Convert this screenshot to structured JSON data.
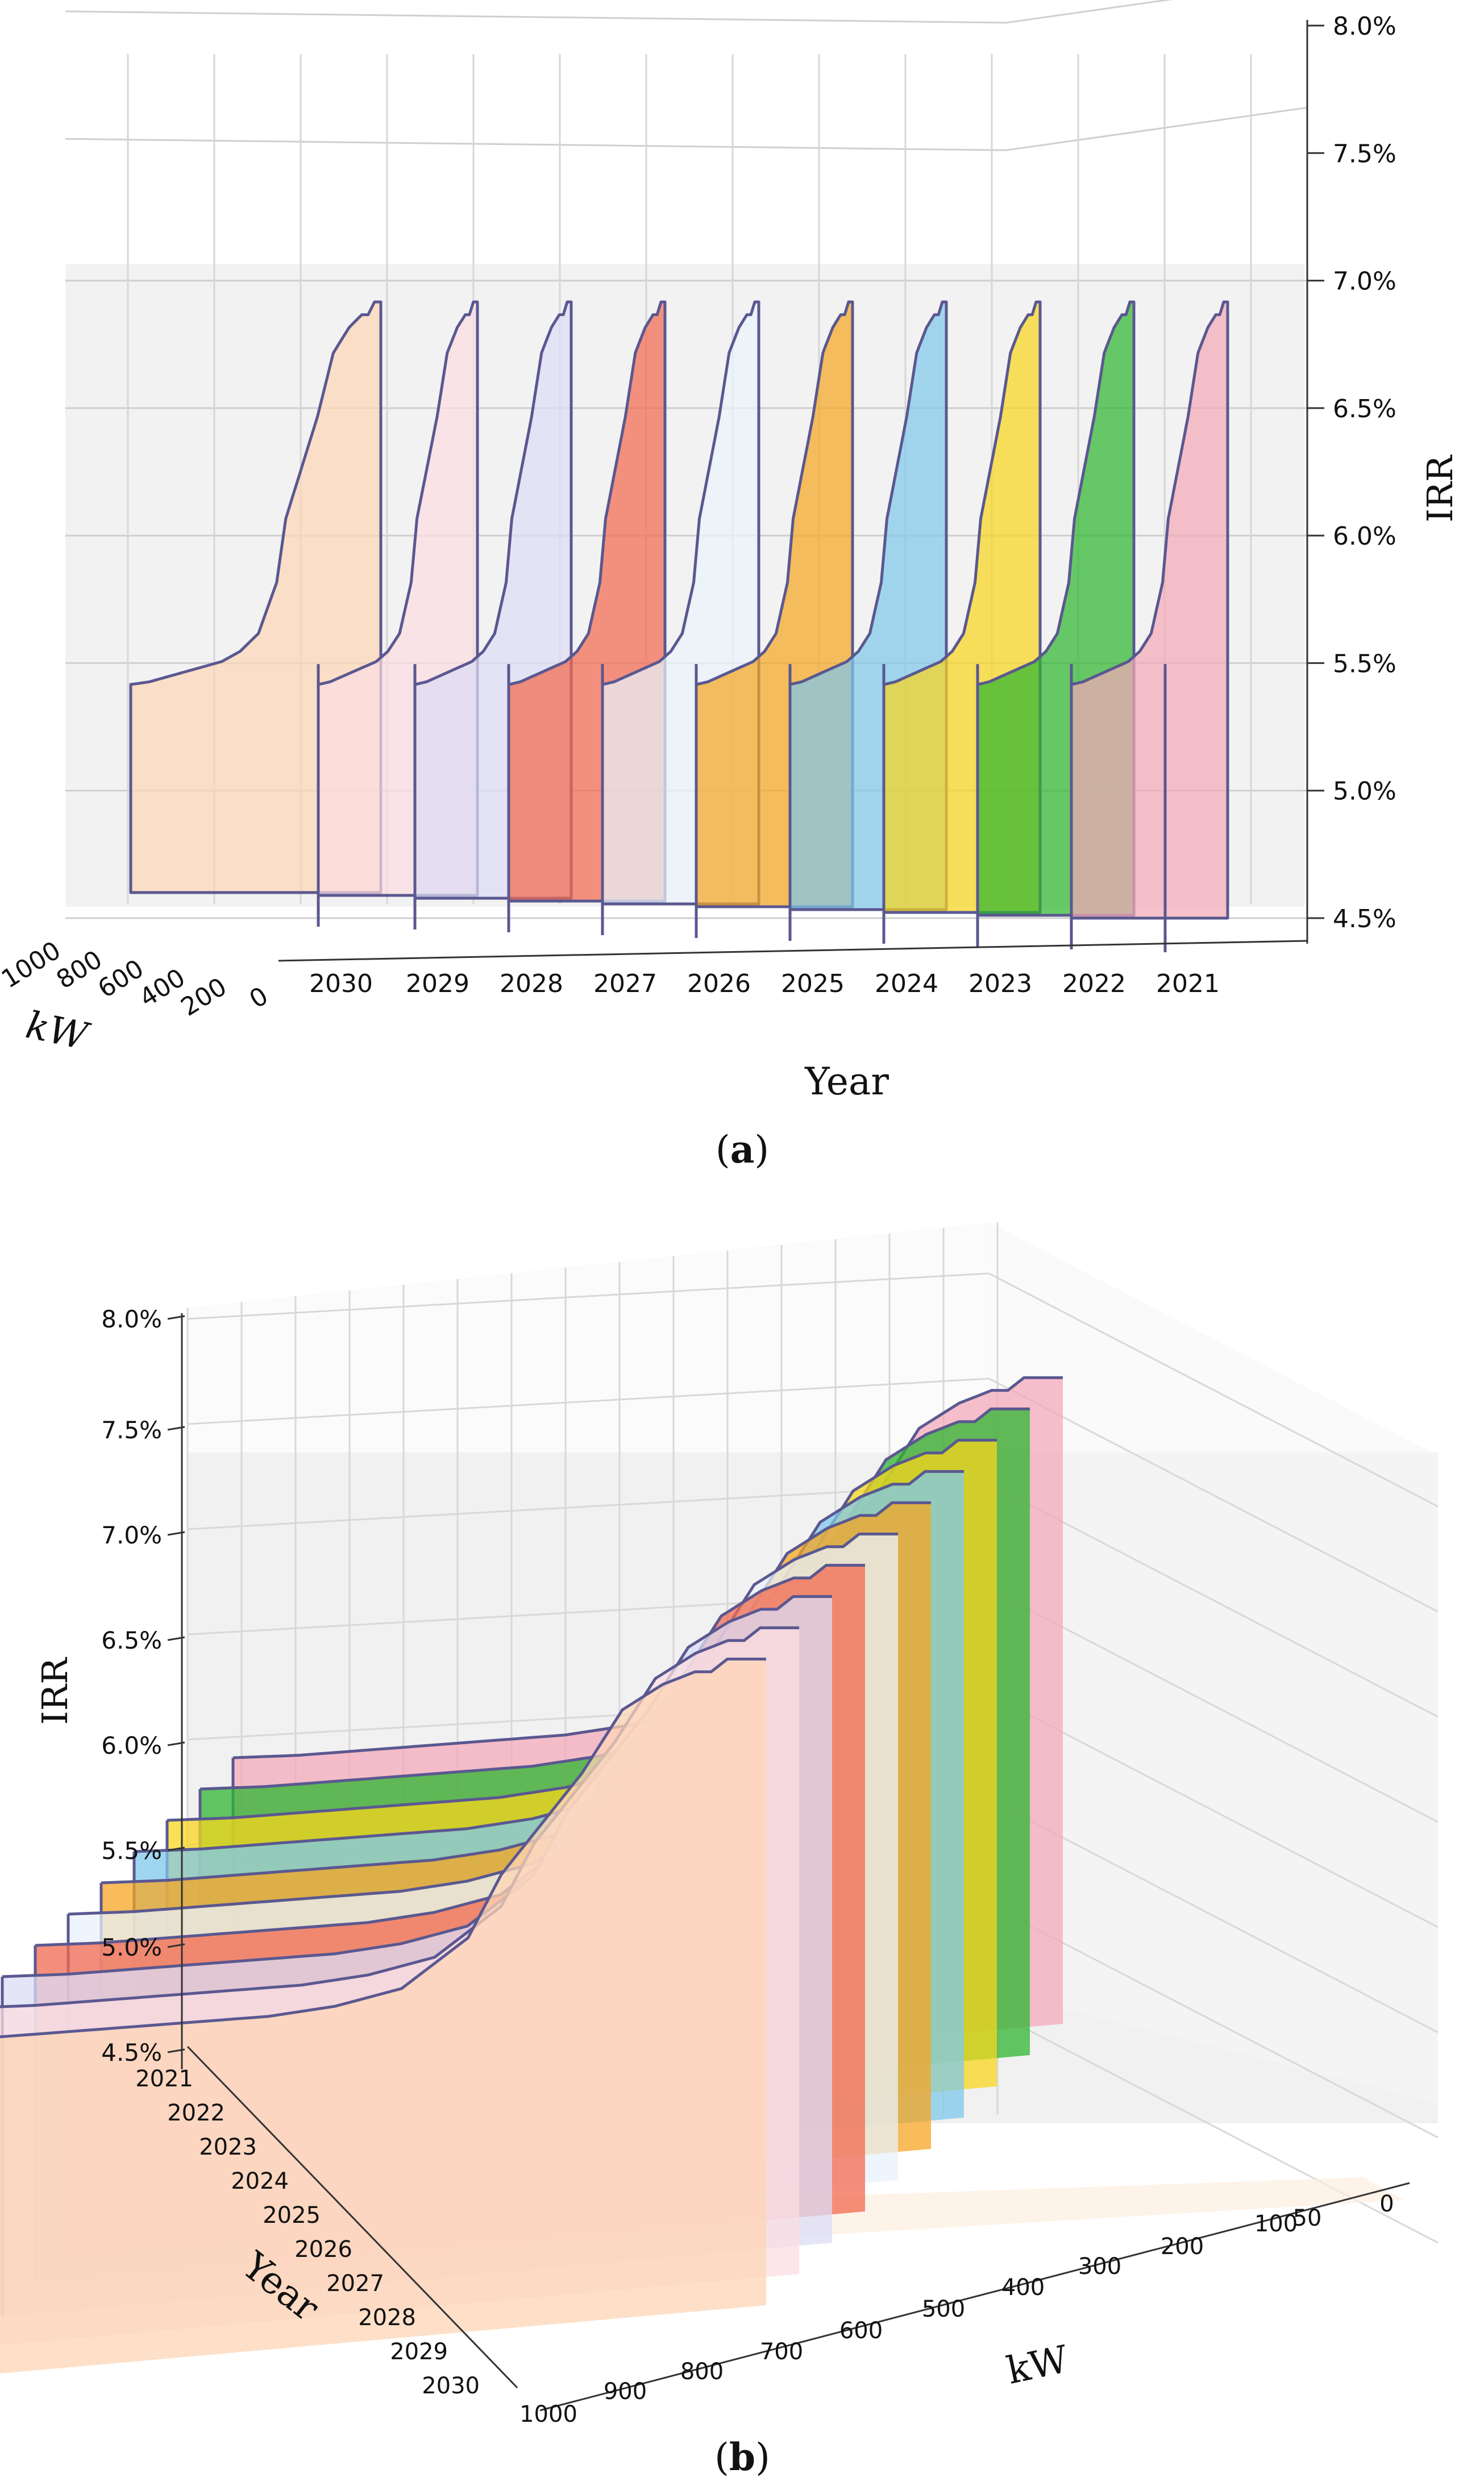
{
  "figure": {
    "panels": [
      {
        "caption_open": "(",
        "caption_letter": "a",
        "caption_close": ")"
      },
      {
        "caption_open": "(",
        "caption_letter": "b",
        "caption_close": ")"
      }
    ]
  },
  "chart_data": [
    {
      "type": "area",
      "view": "3d-side",
      "title": "",
      "xlabel": "Year",
      "ylabel": "kW",
      "zlabel": "IRR",
      "years": [
        "2030",
        "2029",
        "2028",
        "2027",
        "2026",
        "2025",
        "2024",
        "2023",
        "2022",
        "2021"
      ],
      "kw_ticks": [
        "1000",
        "800",
        "600",
        "400",
        "200",
        "0"
      ],
      "irr_ticks": [
        "4.5%",
        "5.0%",
        "5.5%",
        "6.0%",
        "6.5%",
        "7.0%",
        "7.5%",
        "8.0%"
      ],
      "zlim": [
        4.5,
        8.0
      ],
      "kw_range": [
        0,
        1000
      ],
      "grid": true,
      "legend": "none"
    },
    {
      "type": "area",
      "view": "3d-oblique",
      "title": "",
      "xlabel": "kW",
      "ylabel": "Year",
      "zlabel": "IRR",
      "years": [
        "2021",
        "2022",
        "2023",
        "2024",
        "2025",
        "2026",
        "2027",
        "2028",
        "2029",
        "2030"
      ],
      "kw_ticks": [
        "1000",
        "900",
        "800",
        "700",
        "600",
        "500",
        "400",
        "300",
        "200",
        "100",
        "50",
        "0"
      ],
      "irr_ticks": [
        "4.5%",
        "5.0%",
        "5.5%",
        "6.0%",
        "6.5%",
        "7.0%",
        "7.5%",
        "8.0%"
      ],
      "zlim": [
        4.5,
        8.0
      ],
      "kw_range": [
        0,
        1000
      ],
      "grid": true,
      "legend": "none",
      "series": [
        {
          "year": "2021",
          "color": "#f4a9b9",
          "kw": [
            0,
            10,
            20,
            30,
            50,
            75,
            100,
            150,
            200,
            300,
            400,
            500,
            600,
            700,
            800,
            900,
            1000
          ],
          "irr": [
            7.05,
            7.05,
            7.0,
            7.0,
            6.95,
            6.85,
            6.6,
            6.2,
            5.95,
            5.75,
            5.68,
            5.64,
            5.62,
            5.6,
            5.58,
            5.56,
            5.55
          ]
        },
        {
          "year": "2022",
          "color": "#2fb62f",
          "kw": [
            0,
            10,
            20,
            30,
            50,
            75,
            100,
            150,
            200,
            300,
            400,
            500,
            600,
            700,
            800,
            900,
            1000
          ],
          "irr": [
            7.05,
            7.05,
            7.0,
            7.0,
            6.95,
            6.85,
            6.6,
            6.2,
            5.95,
            5.75,
            5.68,
            5.64,
            5.62,
            5.6,
            5.58,
            5.56,
            5.55
          ]
        },
        {
          "year": "2023",
          "color": "#f7d51e",
          "kw": [
            0,
            10,
            20,
            30,
            50,
            75,
            100,
            150,
            200,
            300,
            400,
            500,
            600,
            700,
            800,
            900,
            1000
          ],
          "irr": [
            7.05,
            7.05,
            7.0,
            7.0,
            6.95,
            6.85,
            6.6,
            6.2,
            5.95,
            5.75,
            5.68,
            5.64,
            5.62,
            5.6,
            5.58,
            5.56,
            5.55
          ]
        },
        {
          "year": "2024",
          "color": "#7fc8ea",
          "kw": [
            0,
            10,
            20,
            30,
            50,
            75,
            100,
            150,
            200,
            300,
            400,
            500,
            600,
            700,
            800,
            900,
            1000
          ],
          "irr": [
            7.05,
            7.05,
            7.0,
            7.0,
            6.95,
            6.85,
            6.6,
            6.2,
            5.95,
            5.75,
            5.68,
            5.64,
            5.62,
            5.6,
            5.58,
            5.56,
            5.55
          ]
        },
        {
          "year": "2025",
          "color": "#f5a623",
          "kw": [
            0,
            10,
            20,
            30,
            50,
            75,
            100,
            150,
            200,
            300,
            400,
            500,
            600,
            700,
            800,
            900,
            1000
          ],
          "irr": [
            7.05,
            7.05,
            7.0,
            7.0,
            6.95,
            6.85,
            6.6,
            6.2,
            5.95,
            5.75,
            5.68,
            5.64,
            5.62,
            5.6,
            5.58,
            5.56,
            5.55
          ]
        },
        {
          "year": "2026",
          "color": "#e9f2fb",
          "kw": [
            0,
            10,
            20,
            30,
            50,
            75,
            100,
            150,
            200,
            300,
            400,
            500,
            600,
            700,
            800,
            900,
            1000
          ],
          "irr": [
            7.05,
            7.05,
            7.0,
            7.0,
            6.95,
            6.85,
            6.6,
            6.2,
            5.95,
            5.75,
            5.68,
            5.64,
            5.62,
            5.6,
            5.58,
            5.56,
            5.55
          ]
        },
        {
          "year": "2027",
          "color": "#f26a4f",
          "kw": [
            0,
            10,
            20,
            30,
            50,
            75,
            100,
            150,
            200,
            300,
            400,
            500,
            600,
            700,
            800,
            900,
            1000
          ],
          "irr": [
            7.05,
            7.05,
            7.0,
            7.0,
            6.95,
            6.85,
            6.6,
            6.2,
            5.95,
            5.75,
            5.68,
            5.64,
            5.62,
            5.6,
            5.58,
            5.56,
            5.55
          ]
        },
        {
          "year": "2028",
          "color": "#dcdcf5",
          "kw": [
            0,
            10,
            20,
            30,
            50,
            75,
            100,
            150,
            200,
            300,
            400,
            500,
            600,
            700,
            800,
            900,
            1000
          ],
          "irr": [
            7.05,
            7.05,
            7.0,
            7.0,
            6.95,
            6.85,
            6.6,
            6.2,
            5.95,
            5.75,
            5.68,
            5.64,
            5.62,
            5.6,
            5.58,
            5.56,
            5.55
          ]
        },
        {
          "year": "2029",
          "color": "#fbdde2",
          "kw": [
            0,
            10,
            20,
            30,
            50,
            75,
            100,
            150,
            200,
            300,
            400,
            500,
            600,
            700,
            800,
            900,
            1000
          ],
          "irr": [
            7.05,
            7.05,
            7.0,
            7.0,
            6.95,
            6.85,
            6.6,
            6.2,
            5.95,
            5.75,
            5.68,
            5.64,
            5.62,
            5.6,
            5.58,
            5.56,
            5.55
          ]
        },
        {
          "year": "2030",
          "color": "#fdd5b5",
          "kw": [
            0,
            10,
            20,
            30,
            50,
            75,
            100,
            150,
            200,
            300,
            400,
            500,
            600,
            700,
            800,
            900,
            1000
          ],
          "irr": [
            7.05,
            7.05,
            7.0,
            7.0,
            6.95,
            6.85,
            6.6,
            6.2,
            5.95,
            5.75,
            5.68,
            5.64,
            5.62,
            5.6,
            5.58,
            5.56,
            5.55
          ]
        }
      ]
    }
  ]
}
